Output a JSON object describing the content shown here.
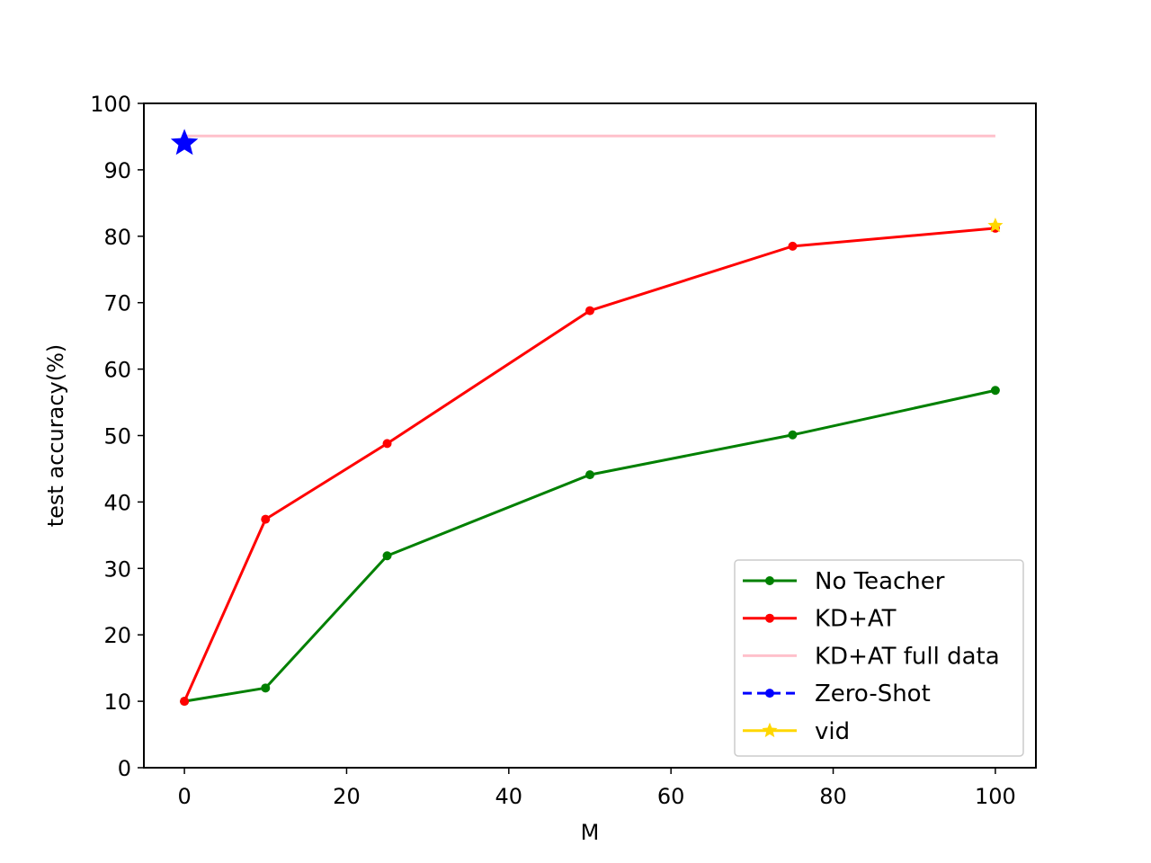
{
  "chart_data": {
    "type": "line",
    "title": "",
    "xlabel": "M",
    "ylabel": "test accuracy(%)",
    "xlim": [
      -5,
      105
    ],
    "ylim": [
      0,
      100
    ],
    "xticks": [
      0,
      20,
      40,
      60,
      80,
      100
    ],
    "yticks": [
      0,
      10,
      20,
      30,
      40,
      50,
      60,
      70,
      80,
      90,
      100
    ],
    "grid": false,
    "legend_position": "lower-right",
    "series": [
      {
        "name": "No Teacher",
        "color": "#008000",
        "style": "solid",
        "marker": "dot",
        "x": [
          0,
          10,
          25,
          50,
          75,
          100
        ],
        "y": [
          10,
          12,
          31.9,
          44.1,
          50.1,
          56.8
        ]
      },
      {
        "name": "KD+AT",
        "color": "#ff0000",
        "style": "solid",
        "marker": "dot",
        "x": [
          0,
          10,
          25,
          50,
          75,
          100
        ],
        "y": [
          10,
          37.4,
          48.8,
          68.8,
          78.5,
          81.2
        ]
      },
      {
        "name": "KD+AT full data",
        "color": "#ffc0cb",
        "style": "solid",
        "marker": "none",
        "x": [
          0,
          100
        ],
        "y": [
          95.1,
          95.1
        ]
      },
      {
        "name": "Zero-Shot",
        "color": "#0000ff",
        "style": "dashed",
        "marker": "dot",
        "x": [
          0
        ],
        "y": [
          94
        ],
        "point_marker": "star"
      },
      {
        "name": "vid",
        "color": "#ffd700",
        "style": "solid",
        "marker": "star",
        "x": [
          100
        ],
        "y": [
          81.6
        ]
      }
    ]
  }
}
